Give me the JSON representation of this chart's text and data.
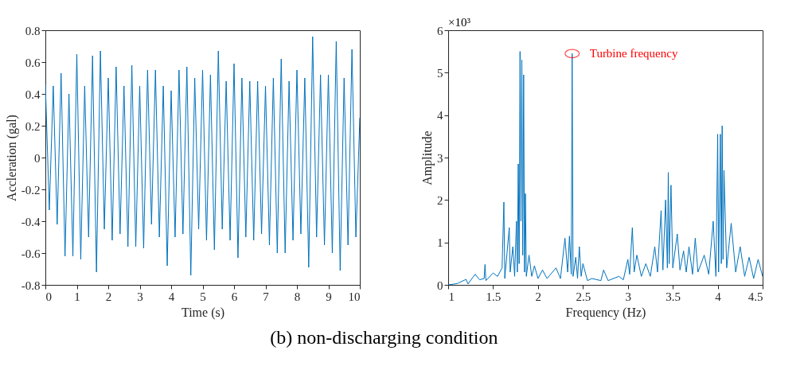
{
  "chart_data": [
    {
      "type": "line",
      "xlabel": "Time (s)",
      "ylabel": "Accleration (gal)",
      "annotations": [
        "(b) non-discharging condition"
      ],
      "xlim": [
        0,
        10
      ],
      "xticks": [
        0,
        1,
        2,
        3,
        4,
        5,
        6,
        7,
        8,
        9,
        10
      ],
      "ylim": [
        -0.8,
        0.8
      ],
      "yticks": [
        -0.8,
        -0.6,
        -0.4,
        -0.2,
        0,
        0.2,
        0.4,
        0.6,
        0.8
      ],
      "grid": false,
      "x": [
        0,
        0.125,
        0.25,
        0.375,
        0.5,
        0.625,
        0.75,
        0.875,
        1,
        1.125,
        1.25,
        1.375,
        1.5,
        1.625,
        1.75,
        1.875,
        2,
        2.125,
        2.25,
        2.375,
        2.5,
        2.625,
        2.75,
        2.875,
        3,
        3.125,
        3.25,
        3.375,
        3.5,
        3.625,
        3.75,
        3.875,
        4,
        4.125,
        4.25,
        4.375,
        4.5,
        4.625,
        4.75,
        4.875,
        5,
        5.125,
        5.25,
        5.375,
        5.5,
        5.625,
        5.75,
        5.875,
        6,
        6.125,
        6.25,
        6.375,
        6.5,
        6.625,
        6.75,
        6.875,
        7,
        7.125,
        7.25,
        7.375,
        7.5,
        7.625,
        7.75,
        7.875,
        8,
        8.125,
        8.25,
        8.375,
        8.5,
        8.625,
        8.75,
        8.875,
        9,
        9.125,
        9.25,
        9.375,
        9.5,
        9.625,
        9.75,
        9.875,
        10
      ],
      "series": [
        {
          "color": "#0072bd",
          "values": [
            0.46,
            -0.33,
            0.45,
            -0.42,
            0.53,
            -0.62,
            0.4,
            -0.62,
            0.65,
            -0.64,
            0.45,
            -0.5,
            0.64,
            -0.72,
            0.67,
            -0.45,
            0.5,
            -0.52,
            0.57,
            -0.48,
            0.45,
            -0.56,
            0.58,
            -0.56,
            0.45,
            -0.57,
            0.55,
            -0.42,
            0.55,
            -0.5,
            0.45,
            -0.68,
            0.42,
            -0.5,
            0.55,
            -0.48,
            0.57,
            -0.74,
            0.5,
            -0.45,
            0.55,
            -0.52,
            0.52,
            -0.58,
            0.67,
            -0.45,
            0.48,
            -0.52,
            0.59,
            -0.63,
            0.5,
            -0.5,
            0.48,
            -0.52,
            0.48,
            -0.48,
            0.45,
            -0.55,
            0.5,
            -0.6,
            0.62,
            -0.6,
            0.48,
            -0.52,
            0.55,
            -0.48,
            0.5,
            -0.69,
            0.76,
            -0.5,
            0.52,
            -0.55,
            0.52,
            -0.6,
            0.73,
            -0.71,
            0.5,
            -0.55,
            0.68,
            -0.5,
            0.25
          ]
        }
      ]
    },
    {
      "type": "line",
      "xlabel": "Frequency (Hz)",
      "ylabel": "Amplitude",
      "annotations": [
        "×10³",
        {
          "text": "Turbine frequency",
          "x": 2.38,
          "y": 5.45
        }
      ],
      "xlim": [
        1,
        4.5
      ],
      "xticks": [
        1,
        1.5,
        2,
        2.5,
        3,
        3.5,
        4,
        4.5
      ],
      "ylim": [
        0,
        6
      ],
      "yticks": [
        0,
        1,
        2,
        3,
        4,
        5,
        6
      ],
      "grid": false,
      "x": [
        1.0,
        1.1,
        1.2,
        1.22,
        1.3,
        1.35,
        1.4,
        1.41,
        1.42,
        1.5,
        1.55,
        1.6,
        1.62,
        1.63,
        1.68,
        1.69,
        1.72,
        1.74,
        1.76,
        1.77,
        1.78,
        1.79,
        1.8,
        1.81,
        1.82,
        1.83,
        1.84,
        1.85,
        1.86,
        1.87,
        1.9,
        1.93,
        1.96,
        2.0,
        2.05,
        2.1,
        2.2,
        2.25,
        2.3,
        2.33,
        2.35,
        2.37,
        2.38,
        2.39,
        2.42,
        2.44,
        2.46,
        2.48,
        2.5,
        2.55,
        2.6,
        2.7,
        2.73,
        2.78,
        2.9,
        2.95,
        3.0,
        3.02,
        3.05,
        3.07,
        3.1,
        3.15,
        3.2,
        3.25,
        3.3,
        3.33,
        3.37,
        3.39,
        3.42,
        3.44,
        3.45,
        3.46,
        3.48,
        3.5,
        3.55,
        3.58,
        3.62,
        3.65,
        3.68,
        3.72,
        3.75,
        3.78,
        3.85,
        3.9,
        3.95,
        3.98,
        4.0,
        4.01,
        4.03,
        4.04,
        4.05,
        4.06,
        4.07,
        4.1,
        4.15,
        4.2,
        4.25,
        4.3,
        4.35,
        4.4,
        4.45,
        4.5
      ],
      "series": [
        {
          "color": "#0072bd",
          "values": [
            0,
            0.03,
            0.13,
            0.02,
            0.25,
            0.12,
            0.15,
            0.48,
            0.1,
            0.28,
            0.2,
            0.4,
            1.95,
            0.15,
            1.35,
            0.3,
            0.9,
            0.2,
            1.5,
            0.3,
            2.85,
            0.5,
            5.5,
            1.5,
            5.3,
            0.7,
            4.95,
            0.3,
            2.15,
            0.2,
            0.7,
            0.2,
            0.45,
            0.15,
            0.35,
            0.15,
            0.4,
            0.15,
            1.1,
            0.3,
            1.15,
            0.25,
            5.45,
            0.2,
            0.65,
            0.15,
            0.9,
            0.2,
            0.5,
            0.1,
            0.15,
            0.1,
            0.35,
            0.1,
            0.2,
            0.12,
            0.6,
            0.25,
            1.35,
            0.3,
            0.7,
            0.2,
            0.5,
            0.2,
            0.9,
            0.3,
            1.75,
            0.35,
            2.0,
            0.4,
            2.65,
            0.5,
            2.35,
            0.4,
            1.2,
            0.35,
            0.8,
            0.3,
            0.9,
            0.25,
            1.1,
            0.3,
            0.7,
            0.25,
            1.5,
            0.2,
            3.55,
            0.3,
            3.55,
            0.5,
            3.75,
            0.6,
            2.7,
            0.4,
            1.45,
            0.3,
            0.9,
            0.2,
            0.65,
            0.15,
            0.6,
            0.2
          ]
        }
      ]
    }
  ]
}
